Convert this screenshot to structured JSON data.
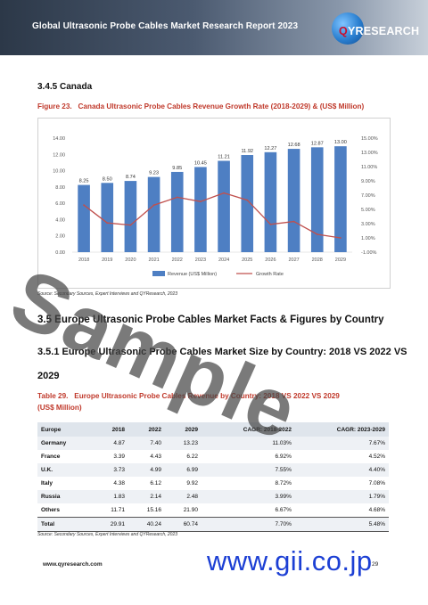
{
  "header": {
    "title": "Global Ultrasonic Probe Cables Market Research Report 2023",
    "logo_q": "Q",
    "logo_text": "YRESEARCH"
  },
  "section_345": {
    "title": "3.4.5   Canada"
  },
  "figure23": {
    "label": "Figure 23.",
    "caption": "Canada Ultrasonic Probe Cables Revenue Growth Rate (2018-2029) & (US$ Million)"
  },
  "chart_data": {
    "type": "bar",
    "categories": [
      "2018",
      "2019",
      "2020",
      "2021",
      "2022",
      "2023",
      "2024",
      "2025",
      "2026",
      "2027",
      "2028",
      "2029"
    ],
    "series": [
      {
        "name": "Revenue (US$ Million)",
        "type": "bar",
        "axis": "left",
        "values": [
          8.25,
          8.5,
          8.74,
          9.23,
          9.85,
          10.45,
          11.21,
          11.92,
          12.27,
          12.68,
          12.87,
          13.0
        ],
        "value_labels": [
          "8.25",
          "8.50",
          "8.74",
          "9.23",
          "9.85",
          "10.45",
          "11.21",
          "11.92",
          "12.27",
          "12.68",
          "12.87",
          "13.00"
        ]
      },
      {
        "name": "Growth Rate",
        "type": "line",
        "axis": "right",
        "values": [
          5.6,
          3.1,
          2.8,
          5.6,
          6.7,
          6.1,
          7.3,
          6.3,
          2.9,
          3.3,
          1.5,
          1.0
        ]
      }
    ],
    "y_left": {
      "range": [
        0,
        14
      ],
      "ticks": [
        "0.00",
        "2.00",
        "4.00",
        "6.00",
        "8.00",
        "10.00",
        "12.00",
        "14.00"
      ]
    },
    "y_right": {
      "range": [
        -1,
        15
      ],
      "ticks": [
        "-1.00%",
        "1.00%",
        "3.00%",
        "5.00%",
        "7.00%",
        "9.00%",
        "11.00%",
        "13.00%",
        "15.00%"
      ]
    },
    "legend": {
      "position": "bottom",
      "items": [
        "Revenue (US$ Million)",
        "Growth Rate"
      ]
    },
    "colors": {
      "bar": "#4e7fc3",
      "line": "#c0504d"
    },
    "grid": false
  },
  "source_1": "Source: Secondary Sources, Expert Interviews and QYResearch, 2023",
  "section_35": {
    "title": "3.5   Europe Ultrasonic Probe Cables Market Facts & Figures by Country"
  },
  "section_351": {
    "line1": "3.5.1   Europe Ultrasonic Probe Cables Market Size by Country: 2018 VS 2022 VS",
    "line2": "2029"
  },
  "table29": {
    "label": "Table 29.",
    "caption_line1": "Europe Ultrasonic Probe Cables Revenue by Country: 2018 VS 2022 VS 2029",
    "caption_line2": "(US$ Million)",
    "headers": [
      "Europe",
      "2018",
      "2022",
      "2029",
      "CAGR: 2018-2022",
      "CAGR: 2023-2029"
    ],
    "rows": [
      [
        "Germany",
        "4.87",
        "7.40",
        "13.23",
        "11.03%",
        "7.67%"
      ],
      [
        "France",
        "3.39",
        "4.43",
        "6.22",
        "6.92%",
        "4.52%"
      ],
      [
        "U.K.",
        "3.73",
        "4.99",
        "6.99",
        "7.55%",
        "4.40%"
      ],
      [
        "Italy",
        "4.38",
        "6.12",
        "9.92",
        "8.72%",
        "7.08%"
      ],
      [
        "Russia",
        "1.83",
        "2.14",
        "2.48",
        "3.99%",
        "1.79%"
      ],
      [
        "Others",
        "11.71",
        "15.16",
        "21.90",
        "6.67%",
        "4.68%"
      ],
      [
        "Total",
        "29.91",
        "40.24",
        "60.74",
        "7.70%",
        "5.48%"
      ]
    ]
  },
  "source_2": "Source: Secondary Sources, Expert Interviews and QYResearch, 2023",
  "footer": {
    "url": "www.qyresearch.com",
    "page": "29"
  },
  "watermarks": {
    "sample": "Sample",
    "gii": "www.gii.co.jp"
  }
}
